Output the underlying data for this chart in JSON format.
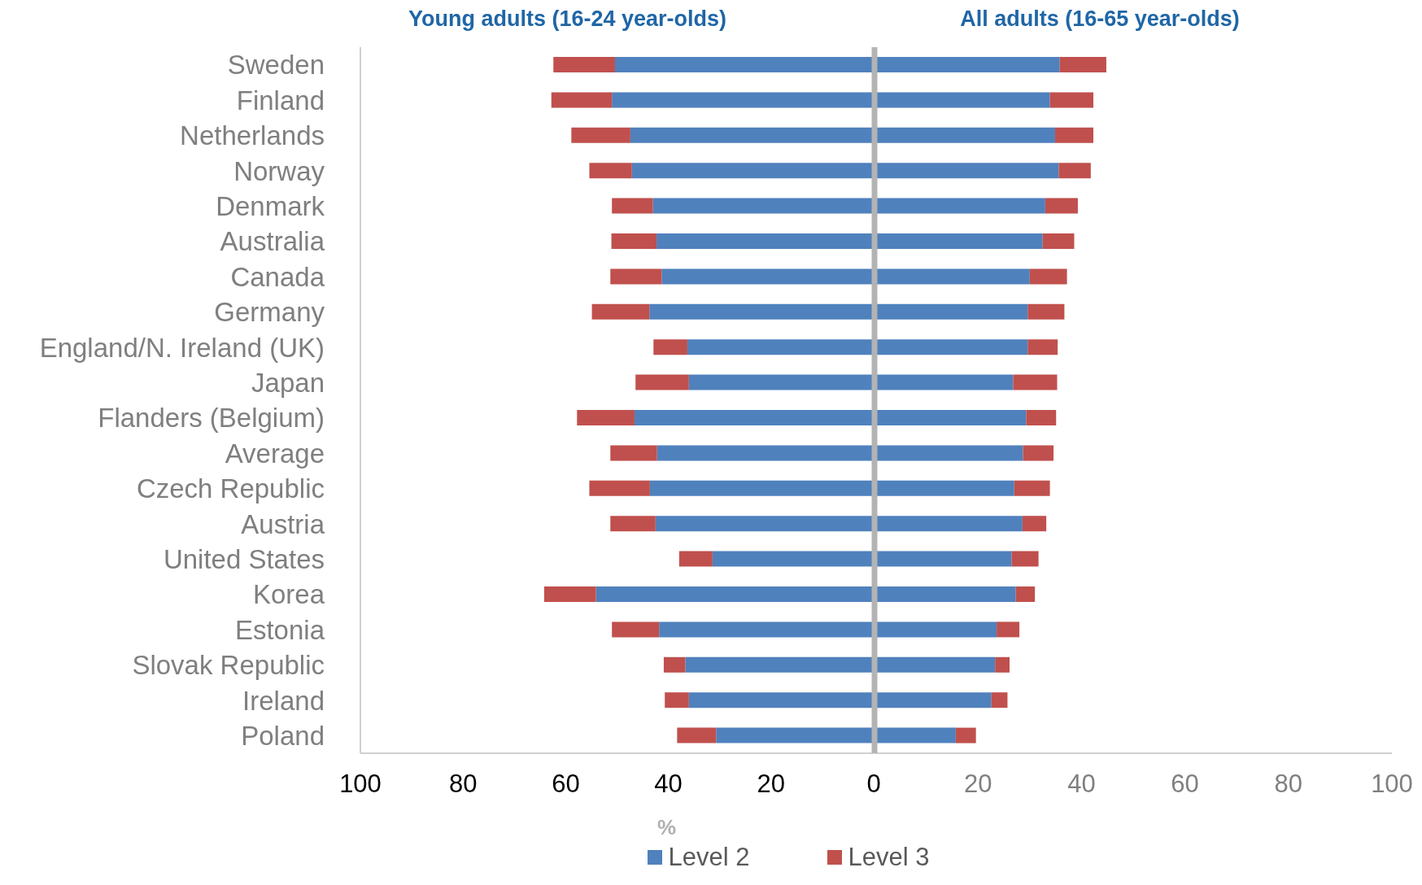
{
  "chart_data": [
    {
      "type": "bar",
      "orientation": "horizontal",
      "stacked": true,
      "title": "Young adults (16-24 year-olds)",
      "xlabel": "%",
      "legend": "bottom",
      "categories": [
        "Sweden",
        "Finland",
        "Netherlands",
        "Norway",
        "Denmark",
        "Australia",
        "Canada",
        "Germany",
        "England/N. Ireland (UK)",
        "Japan",
        "Flanders (Belgium)",
        "Average",
        "Czech Republic",
        "Austria",
        "United States",
        "Korea",
        "Estonia",
        "Slovak Republic",
        "Ireland",
        "Poland"
      ],
      "series": [
        {
          "name": "Level 2",
          "color": "#4f81bd",
          "values": [
            50.4,
            51.0,
            47.4,
            47.1,
            43.0,
            42.3,
            41.3,
            43.7,
            36.3,
            36.0,
            46.6,
            42.2,
            43.6,
            42.5,
            31.4,
            54.1,
            41.8,
            36.7,
            36.0,
            30.7
          ]
        },
        {
          "name": "Level 3",
          "color": "#c0504d",
          "values": [
            12.0,
            11.8,
            11.5,
            8.3,
            8.0,
            8.8,
            10.0,
            11.2,
            6.6,
            10.4,
            11.2,
            9.1,
            11.8,
            8.8,
            6.5,
            10.1,
            9.2,
            4.2,
            4.7,
            7.6
          ]
        }
      ],
      "xlim": [
        100,
        0
      ],
      "xticks": [
        100,
        80,
        60,
        40,
        20,
        0
      ]
    },
    {
      "type": "bar",
      "orientation": "horizontal",
      "stacked": true,
      "title": "All adults (16-65 year-olds)",
      "tick_labels": "x",
      "categories": [
        null,
        null,
        null,
        null,
        null,
        null,
        null,
        null,
        null,
        null,
        null,
        null,
        null,
        null,
        null,
        null,
        null,
        null,
        null,
        null
      ],
      "series": [
        {
          "color": "#4f81bd",
          "values": [
            35.8,
            33.9,
            34.9,
            35.6,
            33.0,
            32.5,
            30.0,
            29.6,
            29.6,
            26.8,
            29.3,
            28.7,
            27.0,
            28.6,
            26.5,
            27.3,
            23.6,
            23.3,
            22.6,
            15.7
          ]
        },
        {
          "color": "#c0504d",
          "values": [
            9.0,
            8.4,
            7.4,
            6.2,
            6.3,
            6.1,
            7.2,
            7.1,
            5.8,
            8.5,
            5.8,
            5.9,
            6.9,
            4.6,
            5.2,
            3.7,
            4.4,
            2.8,
            3.1,
            3.9
          ]
        }
      ],
      "xlim": [
        0,
        100
      ],
      "xticks": [
        20,
        40,
        60,
        80,
        100
      ]
    }
  ]
}
